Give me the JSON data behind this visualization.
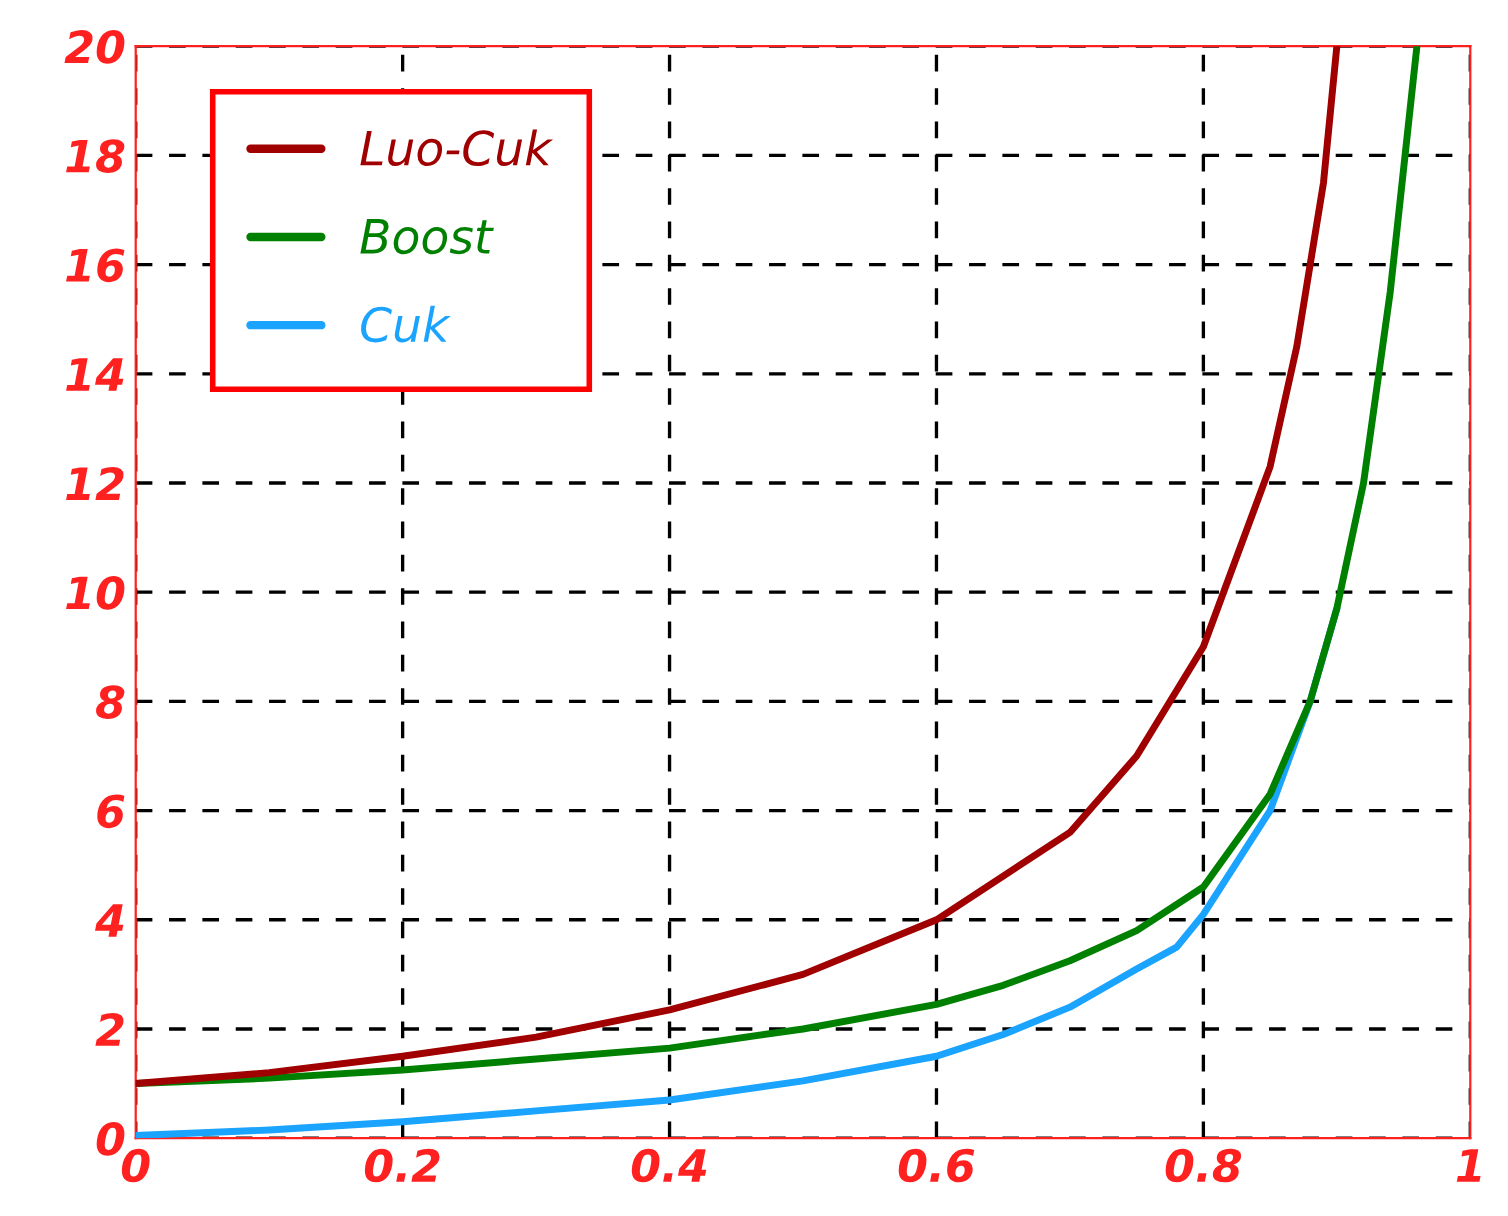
{
  "chart_data": {
    "type": "line",
    "xlim": [
      0,
      1
    ],
    "ylim": [
      0,
      20
    ],
    "xticks": [
      0,
      0.2,
      0.4,
      0.6,
      0.8,
      1
    ],
    "yticks": [
      0,
      2,
      4,
      6,
      8,
      10,
      12,
      14,
      16,
      18,
      20
    ],
    "grid": true,
    "legend": "top left",
    "line_style": "solid",
    "series": [
      {
        "name": "Luo-Cuk",
        "color": "#a00000",
        "x": [
          0,
          0.1,
          0.2,
          0.3,
          0.4,
          0.5,
          0.6,
          0.65,
          0.7,
          0.75,
          0.8,
          0.85,
          0.87,
          0.89,
          0.9
        ],
        "values": [
          1,
          1.2,
          1.5,
          1.85,
          2.35,
          3,
          4,
          4.8,
          5.6,
          7,
          9,
          12.3,
          14.5,
          17.5,
          20
        ]
      },
      {
        "name": "Boost",
        "color": "#008000",
        "x": [
          0,
          0.1,
          0.2,
          0.3,
          0.4,
          0.5,
          0.6,
          0.65,
          0.7,
          0.75,
          0.8,
          0.85,
          0.88,
          0.9,
          0.92,
          0.94,
          0.96
        ],
        "values": [
          1,
          1.1,
          1.25,
          1.45,
          1.65,
          2,
          2.45,
          2.8,
          3.25,
          3.8,
          4.6,
          6.3,
          8,
          9.7,
          12,
          15.5,
          20
        ]
      },
      {
        "name": "Cuk",
        "color": "#1aa3ff",
        "x": [
          0,
          0.1,
          0.2,
          0.3,
          0.4,
          0.5,
          0.6,
          0.65,
          0.7,
          0.75,
          0.78,
          0.8,
          0.85,
          0.88,
          0.9
        ],
        "values": [
          0.05,
          0.15,
          0.3,
          0.5,
          0.7,
          1.05,
          1.5,
          1.9,
          2.4,
          3.1,
          3.5,
          4.1,
          6,
          8,
          9.7
        ]
      }
    ]
  }
}
